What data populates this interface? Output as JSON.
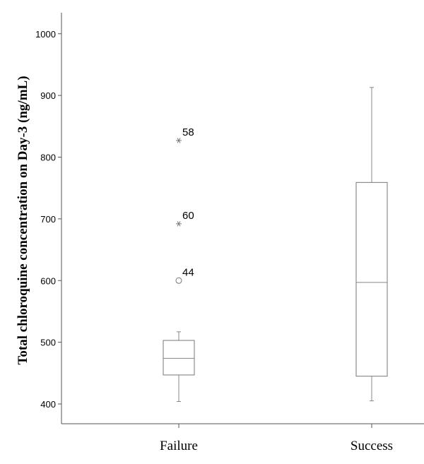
{
  "chart_data": {
    "type": "box",
    "ylabel": "Total chloroquine concentration on Day-3 (ng/mL)",
    "xlabel": "",
    "ylim": [
      370,
      1035
    ],
    "yticks": [
      400,
      500,
      600,
      700,
      800,
      900,
      1000
    ],
    "categories": [
      "Failure",
      "Success"
    ],
    "boxes": [
      {
        "category": "Failure",
        "whisker_low": 404,
        "q1": 447,
        "median": 474,
        "q3": 503,
        "whisker_high": 517,
        "outliers": [
          {
            "id": "58",
            "value": 827,
            "kind": "extreme"
          },
          {
            "id": "60",
            "value": 692,
            "kind": "extreme"
          },
          {
            "id": "44",
            "value": 600,
            "kind": "outlier"
          }
        ]
      },
      {
        "category": "Success",
        "whisker_low": 405,
        "q1": 445,
        "median": 597,
        "q3": 759,
        "whisker_high": 913,
        "outliers": []
      }
    ]
  }
}
